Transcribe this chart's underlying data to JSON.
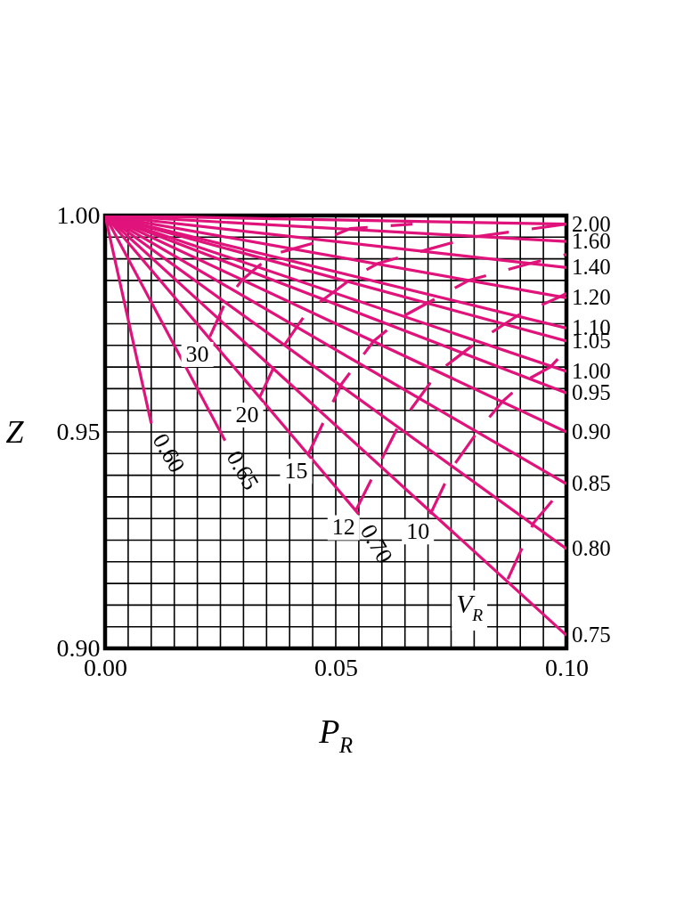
{
  "chart_data": {
    "type": "line",
    "xlabel": "P$_{R}$",
    "ylabel": "Z",
    "xlim": [
      0,
      0.1
    ],
    "ylim": [
      0.9,
      1.0
    ],
    "xticks": [
      {
        "value": 0,
        "label": "0.00"
      },
      {
        "value": 0.005,
        "label": null
      },
      {
        "value": 0.01,
        "label": null
      },
      {
        "value": 0.015,
        "label": null
      },
      {
        "value": 0.02,
        "label": null
      },
      {
        "value": 0.025,
        "label": null
      },
      {
        "value": 0.03,
        "label": null
      },
      {
        "value": 0.035,
        "label": null
      },
      {
        "value": 0.04,
        "label": null
      },
      {
        "value": 0.045,
        "label": null
      },
      0.05,
      {
        "value": 0.055,
        "label": null
      },
      {
        "value": 0.06,
        "label": null
      },
      {
        "value": 0.065,
        "label": null
      },
      {
        "value": 0.07,
        "label": null
      },
      {
        "value": 0.075,
        "label": null
      },
      {
        "value": 0.08,
        "label": null
      },
      {
        "value": 0.085,
        "label": null
      },
      {
        "value": 0.09,
        "label": null
      },
      {
        "value": 0.095,
        "label": null
      },
      {
        "value": 0.1,
        "label": "0.10"
      }
    ],
    "yticks": [
      {
        "value": 0.9,
        "label": "0.90"
      },
      {
        "value": 0.905,
        "label": null
      },
      {
        "value": 0.91,
        "label": null
      },
      {
        "value": 0.915,
        "label": null
      },
      {
        "value": 0.92,
        "label": null
      },
      {
        "value": 0.925,
        "label": null
      },
      {
        "value": 0.93,
        "label": null
      },
      {
        "value": 0.935,
        "label": null
      },
      {
        "value": 0.94,
        "label": null
      },
      {
        "value": 0.945,
        "label": null
      },
      0.95,
      {
        "value": 0.955,
        "label": null
      },
      {
        "value": 0.96,
        "label": null
      },
      {
        "value": 0.965,
        "label": null
      },
      {
        "value": 0.97,
        "label": null
      },
      {
        "value": 0.975,
        "label": null
      },
      {
        "value": 0.98,
        "label": null
      },
      {
        "value": 0.985,
        "label": null
      },
      {
        "value": 0.99,
        "label": null
      },
      {
        "value": 0.995,
        "label": null
      },
      {
        "value": 1.0,
        "label": "1.00"
      }
    ],
    "grid": true,
    "legend": false,
    "series": [
      {
        "name": "2.00",
        "color": "#e0137b",
        "line_style": "solid",
        "x": [
          0,
          0.1
        ],
        "values": [
          1,
          0.998
        ]
      },
      {
        "name": "1.60",
        "color": "#e0137b",
        "line_style": "solid",
        "x": [
          0,
          0.1
        ],
        "values": [
          1,
          0.994
        ]
      },
      {
        "name": "1.40",
        "color": "#e0137b",
        "line_style": "solid",
        "x": [
          0,
          0.1
        ],
        "values": [
          1,
          0.988
        ]
      },
      {
        "name": "1.20",
        "color": "#e0137b",
        "line_style": "solid",
        "x": [
          0,
          0.1
        ],
        "values": [
          1,
          0.981
        ]
      },
      {
        "name": "1.10",
        "color": "#e0137b",
        "line_style": "solid",
        "x": [
          0,
          0.1
        ],
        "values": [
          1,
          0.974
        ]
      },
      {
        "name": "1.05",
        "color": "#e0137b",
        "line_style": "solid",
        "x": [
          0,
          0.1
        ],
        "values": [
          1,
          0.971
        ]
      },
      {
        "name": "1.00",
        "color": "#e0137b",
        "line_style": "solid",
        "x": [
          0,
          0.1
        ],
        "values": [
          1,
          0.964
        ]
      },
      {
        "name": "0.95",
        "color": "#e0137b",
        "line_style": "solid",
        "x": [
          0,
          0.1
        ],
        "values": [
          1,
          0.959
        ]
      },
      {
        "name": "0.90",
        "color": "#e0137b",
        "line_style": "solid",
        "x": [
          0,
          0.1
        ],
        "values": [
          1,
          0.95
        ]
      },
      {
        "name": "0.85",
        "color": "#e0137b",
        "line_style": "solid",
        "x": [
          0,
          0.1
        ],
        "values": [
          1,
          0.938
        ]
      },
      {
        "name": "0.80",
        "color": "#e0137b",
        "line_style": "solid",
        "x": [
          0,
          0.1
        ],
        "values": [
          1,
          0.923
        ]
      },
      {
        "name": "0.75",
        "color": "#e0137b",
        "line_style": "solid",
        "x": [
          0,
          0.1
        ],
        "values": [
          1,
          0.903
        ]
      },
      {
        "name": "0.70",
        "color": "#e0137b",
        "line_style": "solid",
        "x": [
          0,
          0.055
        ],
        "values": [
          1,
          0.931
        ]
      },
      {
        "name": "0.65",
        "color": "#e0137b",
        "line_style": "solid",
        "x": [
          0,
          0.026
        ],
        "values": [
          1,
          0.948
        ]
      },
      {
        "name": "0.60",
        "color": "#e0137b",
        "line_style": "solid",
        "x": [
          0,
          0.01
        ],
        "values": [
          1,
          0.952
        ]
      },
      {
        "name": "30",
        "color": "#e0137b",
        "line_style": "dashed",
        "x": [
          0.0227,
          0.0261,
          0.0296,
          0.0329,
          0.0363,
          0.0397,
          0.0464,
          0.0532,
          0.0666
        ],
        "values": [
          0.972,
          0.98,
          0.985,
          0.988,
          0.991,
          0.992,
          0.994,
          0.997,
          0.998
        ]
      },
      {
        "name": "20",
        "color": "#e0137b",
        "line_style": "dashed",
        "x": [
          0.0335,
          0.0388,
          0.044,
          0.0491,
          0.0542,
          0.0593,
          0.0694,
          0.0796,
          0.0998
        ],
        "values": [
          0.958,
          0.97,
          0.978,
          0.982,
          0.986,
          0.989,
          0.992,
          0.995,
          0.998
        ]
      },
      {
        "name": "15",
        "color": "#e0137b",
        "line_style": "dashed",
        "x": [
          0.0441,
          0.0512,
          0.0582,
          0.0651,
          0.072,
          0.0788,
          0.0923,
          0.1
        ],
        "values": [
          0.945,
          0.961,
          0.971,
          0.977,
          0.981,
          0.985,
          0.989,
          0.991
        ]
      },
      {
        "name": "12",
        "color": "#e0137b",
        "line_style": "dashed",
        "x": [
          0.0544,
          0.0634,
          0.0723,
          0.0809,
          0.0896,
          0.0981,
          0.1
        ],
        "values": [
          0.932,
          0.951,
          0.964,
          0.971,
          0.977,
          0.981,
          0.982
        ]
      },
      {
        "name": "10",
        "color": "#e0137b",
        "line_style": "dashed",
        "x": [
          0.0705,
          0.0754,
          0.0807,
          0.0861,
          0.0914,
          0.0965,
          0.1
        ],
        "values": [
          0.931,
          0.942,
          0.95,
          0.957,
          0.962,
          0.965,
          0.969
        ]
      },
      {
        "color": "#e0137b",
        "line_style": "dashed",
        "x": [
          0.0873,
          0.0929,
          0.1
        ],
        "values": [
          0.916,
          0.929,
          0.938
        ]
      }
    ],
    "annotations": [
      "V$_{R}$"
    ]
  }
}
